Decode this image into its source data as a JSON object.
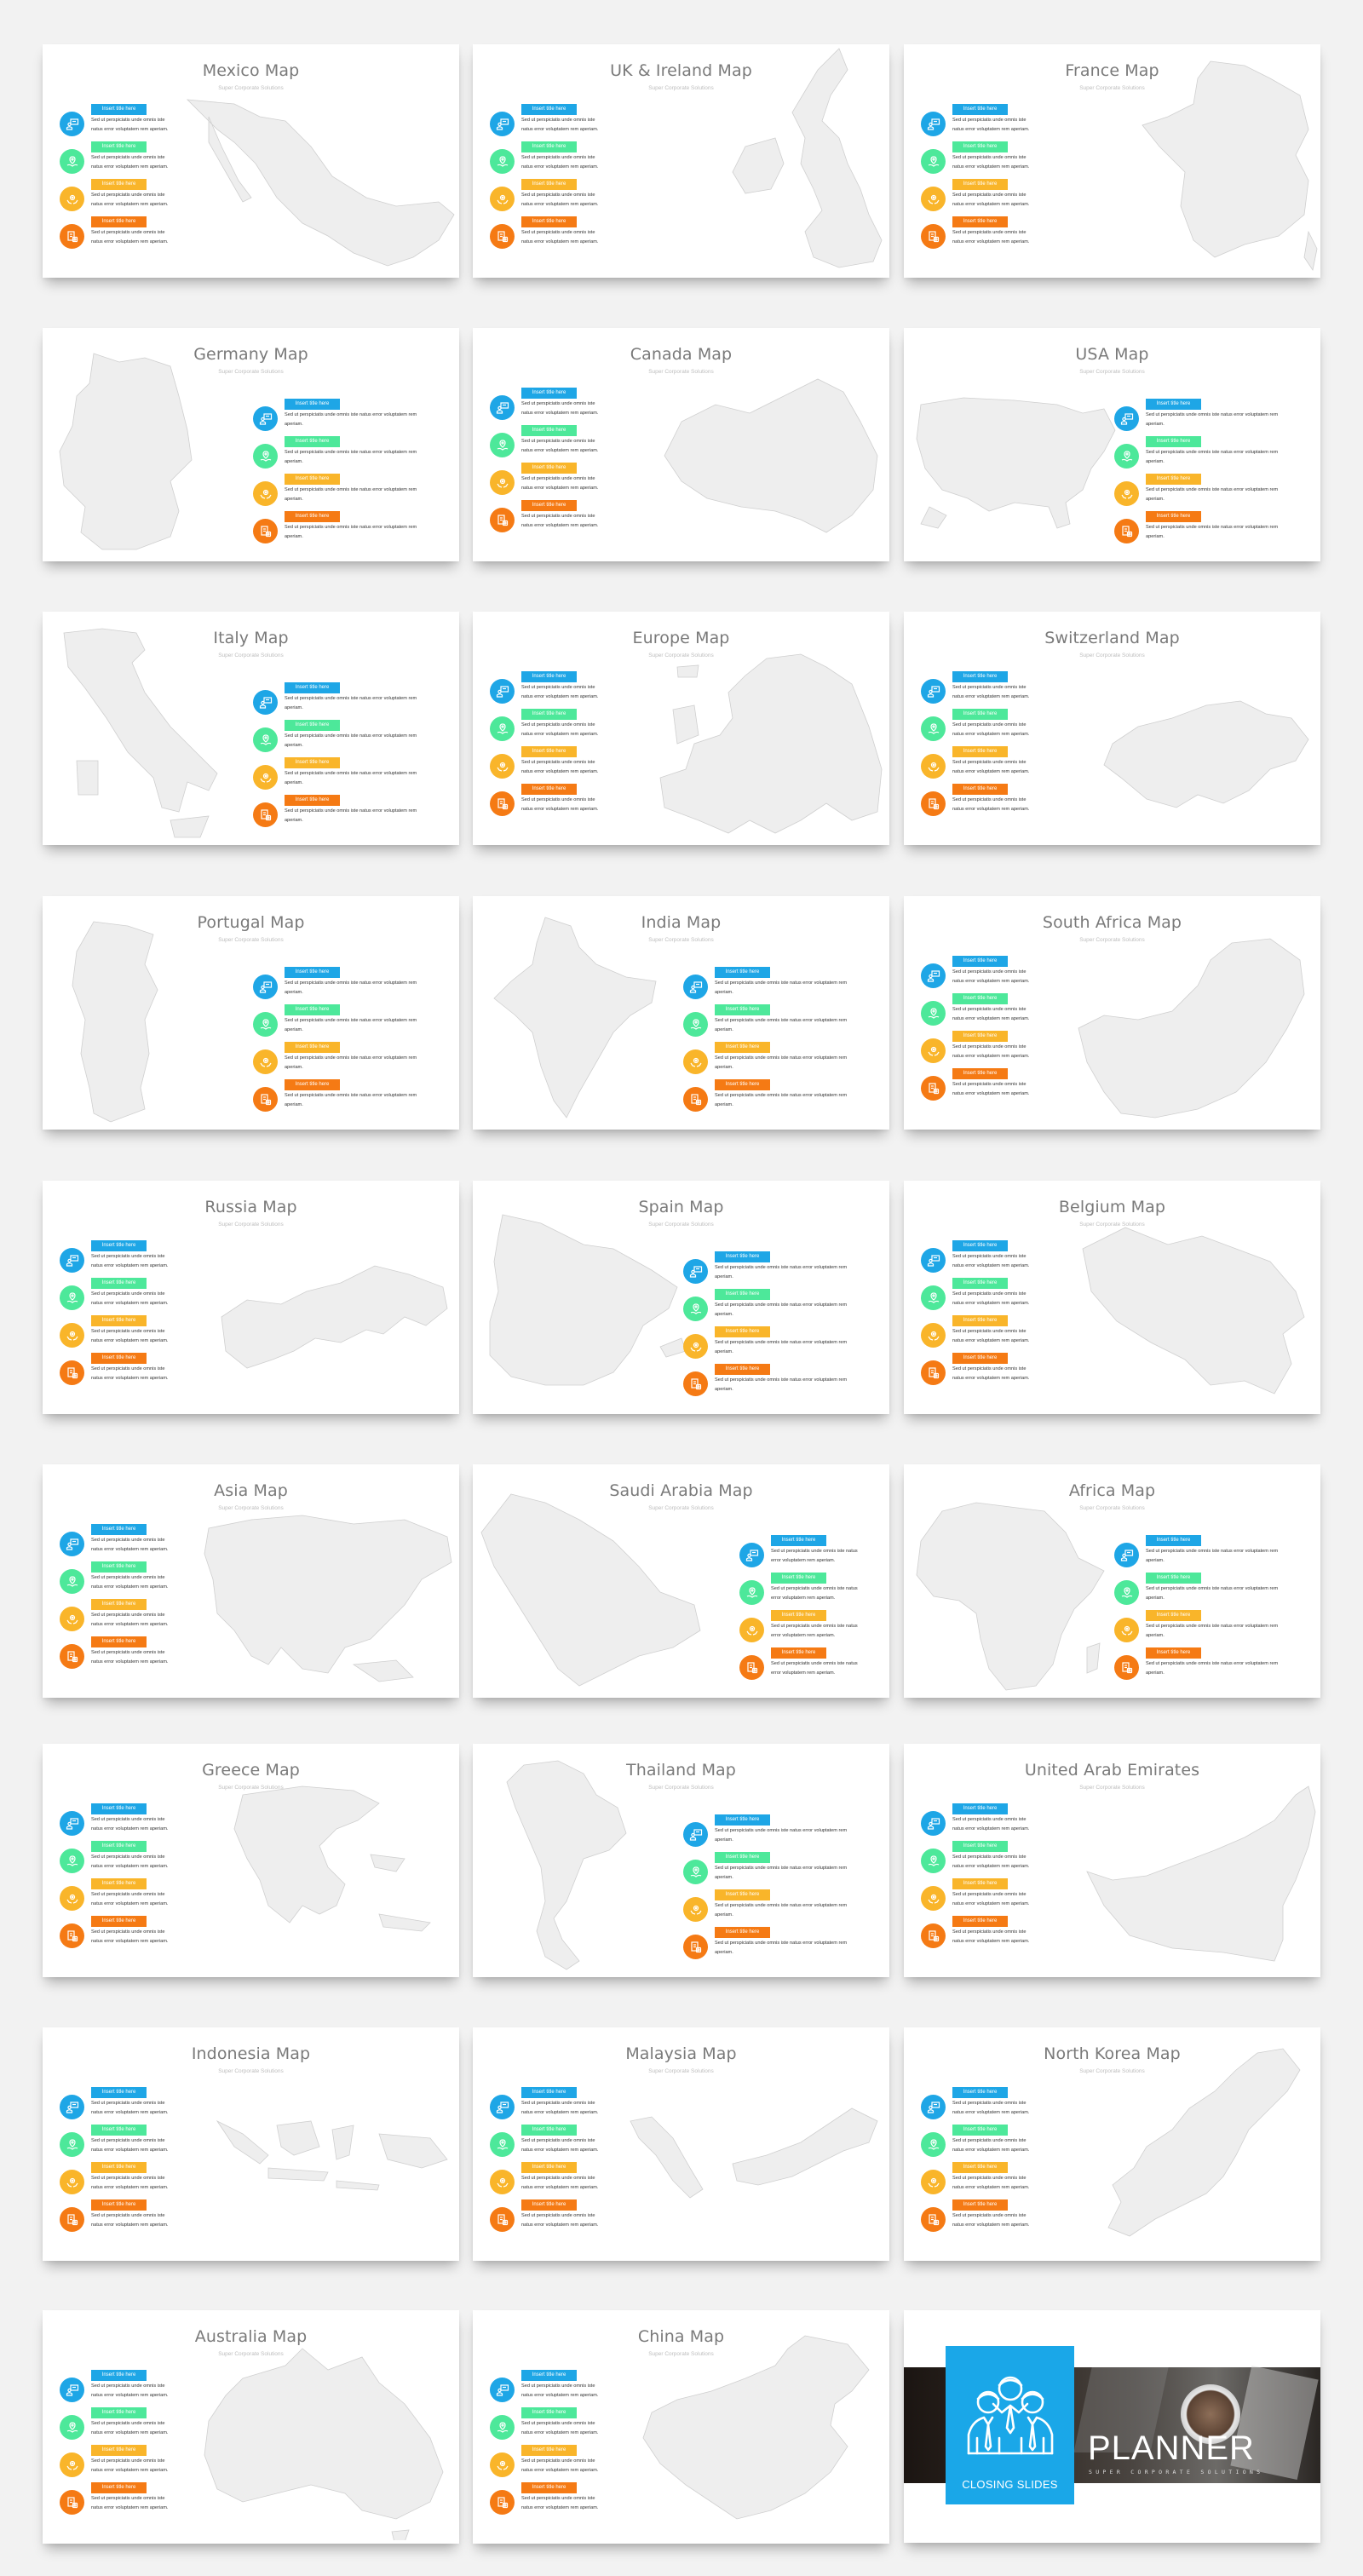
{
  "page": {
    "background": "#f2f2f2",
    "grid": {
      "columns": [
        50,
        555,
        1061
      ],
      "row_tops": [
        52,
        385,
        718,
        1052,
        1386,
        1719,
        2047,
        2380,
        2712
      ]
    }
  },
  "common": {
    "subtitle": "Super Corporate Solutions",
    "item_title": "Insert title here",
    "item_text": "Sed ut perspiciatis unde omnis iste natus error voluptatem rem aperiam.",
    "items": [
      {
        "icon": "presentation-icon",
        "color": "#1ea6e6"
      },
      {
        "icon": "hand-pin-icon",
        "color": "#4de89a"
      },
      {
        "icon": "gear-hands-icon",
        "color": "#f9b52a"
      },
      {
        "icon": "documents-icon",
        "color": "#f57a14"
      }
    ]
  },
  "slides": [
    {
      "title": "Mexico Map",
      "layout": "left",
      "map": "mexico"
    },
    {
      "title": "UK & Ireland Map",
      "layout": "left",
      "map": "uk"
    },
    {
      "title": "France Map",
      "layout": "left",
      "map": "france"
    },
    {
      "title": "Germany Map",
      "layout": "right",
      "map": "germany"
    },
    {
      "title": "Canada Map",
      "layout": "left",
      "map": "canada"
    },
    {
      "title": "USA Map",
      "layout": "right",
      "map": "usa"
    },
    {
      "title": "Italy Map",
      "layout": "right",
      "map": "italy"
    },
    {
      "title": "Europe Map",
      "layout": "left",
      "map": "europe"
    },
    {
      "title": "Switzerland Map",
      "layout": "left",
      "map": "switzerland"
    },
    {
      "title": "Portugal Map",
      "layout": "right",
      "map": "portugal"
    },
    {
      "title": "India Map",
      "layout": "right",
      "map": "india"
    },
    {
      "title": "South Africa Map",
      "layout": "left",
      "map": "southafrica"
    },
    {
      "title": "Russia Map",
      "layout": "left",
      "map": "russia"
    },
    {
      "title": "Spain Map",
      "layout": "right",
      "map": "spain"
    },
    {
      "title": "Belgium Map",
      "layout": "left",
      "map": "belgium"
    },
    {
      "title": "Asia Map",
      "layout": "left",
      "map": "asia"
    },
    {
      "title": "Saudi Arabia Map",
      "layout": "right-far",
      "map": "saudi"
    },
    {
      "title": "Africa Map",
      "layout": "right",
      "map": "africa"
    },
    {
      "title": "Greece Map",
      "layout": "left",
      "map": "greece"
    },
    {
      "title": "Thailand Map",
      "layout": "right",
      "map": "thailand"
    },
    {
      "title": "United Arab Emirates",
      "layout": "left",
      "map": "uae"
    },
    {
      "title": "Indonesia Map",
      "layout": "left",
      "map": "indonesia"
    },
    {
      "title": "Malaysia Map",
      "layout": "left",
      "map": "malaysia"
    },
    {
      "title": "North Korea Map",
      "layout": "left",
      "map": "northkorea"
    },
    {
      "title": "Australia Map",
      "layout": "left",
      "map": "australia"
    },
    {
      "title": "China Map",
      "layout": "left",
      "map": "china"
    }
  ],
  "closing": {
    "box_label": "CLOSING SLIDES",
    "title": "PLANNER",
    "subtitle": "SUPER CORPORATE SOLUTIONS",
    "box_color": "#1aa7e8",
    "icon": "team-icon"
  }
}
